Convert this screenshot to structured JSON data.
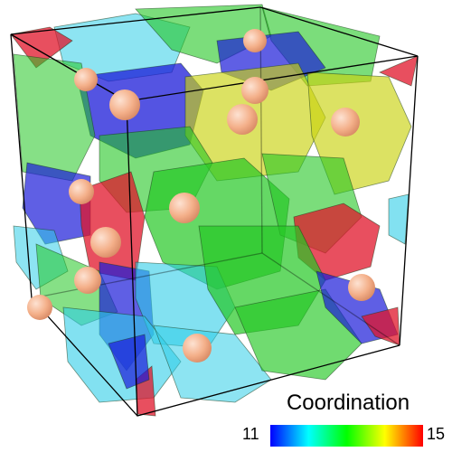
{
  "legend": {
    "title": "Coordination",
    "min_label": "11",
    "max_label": "15",
    "colors": [
      "#0000ff",
      "#00ffff",
      "#00ff00",
      "#ffff00",
      "#ff0000"
    ]
  },
  "colors": {
    "atom": "#f7b894",
    "c11": "#1b1bd8",
    "c12": "#2fcde8",
    "c13": "#23c723",
    "c14": "#c9d20f",
    "c15": "#e0142a"
  }
}
